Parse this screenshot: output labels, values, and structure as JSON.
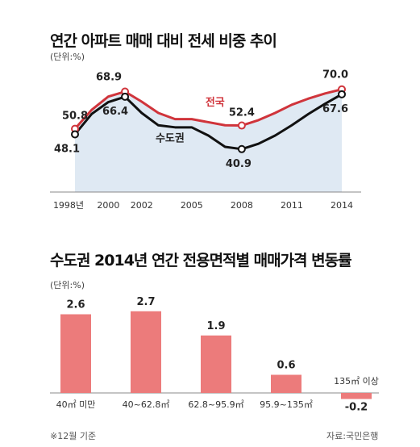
{
  "colors": {
    "red": "#d0343b",
    "black": "#111111",
    "area": "#dfe9f3",
    "bar": "#ec7b7b",
    "axis": "#888888"
  },
  "chart_data": [
    {
      "type": "line",
      "title": "연간 아파트 매매 대비 전세 비중 추이",
      "unit": "(단위:%)",
      "xlabel": "",
      "ylabel": "",
      "x_tick_labels": [
        "1998년",
        "2000",
        "2002",
        "2005",
        "2008",
        "2011",
        "2014"
      ],
      "series": [
        {
          "name": "전국",
          "color": "#d0343b",
          "x": [
            1998,
            1999,
            2000,
            2001,
            2002,
            2003,
            2004,
            2005,
            2006,
            2007,
            2008,
            2009,
            2010,
            2011,
            2012,
            2013,
            2014
          ],
          "values": [
            50.8,
            60.0,
            66.5,
            68.9,
            64.0,
            58.5,
            55.5,
            55.5,
            54.0,
            52.5,
            52.4,
            55.0,
            58.5,
            62.5,
            65.5,
            68.0,
            70.0
          ]
        },
        {
          "name": "수도권",
          "color": "#111111",
          "x": [
            1998,
            1999,
            2000,
            2001,
            2002,
            2003,
            2004,
            2005,
            2006,
            2007,
            2008,
            2009,
            2010,
            2011,
            2012,
            2013,
            2014
          ],
          "values": [
            48.1,
            58.0,
            63.8,
            66.4,
            58.5,
            52.5,
            51.5,
            51.5,
            47.5,
            42.0,
            40.9,
            43.5,
            47.5,
            52.5,
            58.0,
            63.0,
            67.6
          ]
        }
      ],
      "data_labels": [
        {
          "series": "전국",
          "x": 1998,
          "text": "50.8"
        },
        {
          "series": "전국",
          "x": 2001,
          "text": "68.9"
        },
        {
          "series": "전국",
          "x": 2008,
          "text": "52.4"
        },
        {
          "series": "전국",
          "x": 2014,
          "text": "70.0"
        },
        {
          "series": "수도권",
          "x": 1998,
          "text": "48.1"
        },
        {
          "series": "수도권",
          "x": 2001,
          "text": "66.4"
        },
        {
          "series": "수도권",
          "x": 2008,
          "text": "40.9"
        },
        {
          "series": "수도권",
          "x": 2014,
          "text": "67.6"
        }
      ],
      "ylim": [
        20,
        75
      ],
      "grid": false,
      "legend": "inline labels"
    },
    {
      "type": "bar",
      "title": "수도권 2014년 연간 전용면적별 매매가격 변동률",
      "unit": "(단위:%)",
      "xlabel": "",
      "ylabel": "",
      "categories": [
        "40㎡ 미만",
        "40~62.8㎡",
        "62.8~95.9㎡",
        "95.9~135㎡",
        "135㎡ 이상"
      ],
      "values": [
        2.6,
        2.7,
        1.9,
        0.6,
        -0.2
      ],
      "value_labels": [
        "2.6",
        "2.7",
        "1.9",
        "0.6",
        "-0.2"
      ],
      "ylim": [
        -0.3,
        3.0
      ],
      "grid": false,
      "legend": "none"
    }
  ],
  "footnote": "※12월 기준",
  "source": "자료:국민은행"
}
